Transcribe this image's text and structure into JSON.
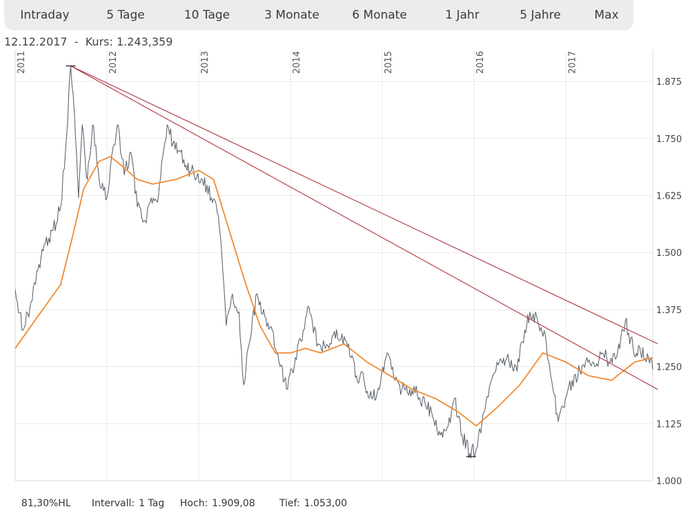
{
  "tabs": [
    {
      "label": "Intraday"
    },
    {
      "label": "5 Tage"
    },
    {
      "label": "10 Tage"
    },
    {
      "label": "3 Monate"
    },
    {
      "label": "6 Monate"
    },
    {
      "label": "1 Jahr"
    },
    {
      "label": "5 Jahre"
    },
    {
      "label": "Max"
    }
  ],
  "header": {
    "date": "12.12.2017",
    "separator": "-",
    "price_label": "Kurs:",
    "price_value": "1.243,359"
  },
  "footer": {
    "range_pct": "81,30%HL",
    "interval_label": "Intervall:",
    "interval_value": "1 Tag",
    "high_label": "Hoch:",
    "high_value": "1.909,08",
    "low_label": "Tief:",
    "low_value": "1.053,00"
  },
  "colors": {
    "price_line": "#5f6670",
    "moving_average": "#f08a32",
    "trendline": "#b5404a",
    "grid": "#e9e9e9",
    "tab_bar": "#ececec"
  },
  "chart_data": {
    "type": "line",
    "x_range": [
      "2011-01-01",
      "2017-12-12"
    ],
    "ylim": [
      1.0,
      1.925
    ],
    "y_ticks": [
      1.0,
      1.125,
      1.25,
      1.375,
      1.5,
      1.625,
      1.75,
      1.875
    ],
    "y_tick_labels": [
      "1.000",
      "1.125",
      "1.250",
      "1.375",
      "1.500",
      "1.625",
      "1.750",
      "1.875"
    ],
    "year_labels": [
      {
        "label": "2011",
        "date": "2011-01-01"
      },
      {
        "label": "2012",
        "date": "2012-01-01"
      },
      {
        "label": "2013",
        "date": "2013-01-01"
      },
      {
        "label": "2014",
        "date": "2014-01-01"
      },
      {
        "label": "2015",
        "date": "2015-01-01"
      },
      {
        "label": "2016",
        "date": "2016-01-01"
      },
      {
        "label": "2017",
        "date": "2017-01-01"
      }
    ],
    "grid": true,
    "series": [
      {
        "kind": "price",
        "points": [
          [
            "2011-01-01",
            1.42
          ],
          [
            "2011-02-01",
            1.33
          ],
          [
            "2011-03-01",
            1.38
          ],
          [
            "2011-04-01",
            1.46
          ],
          [
            "2011-05-01",
            1.52
          ],
          [
            "2011-06-01",
            1.55
          ],
          [
            "2011-07-01",
            1.6
          ],
          [
            "2011-07-25",
            1.76
          ],
          [
            "2011-08-10",
            1.909
          ],
          [
            "2011-08-25",
            1.8
          ],
          [
            "2011-09-10",
            1.62
          ],
          [
            "2011-09-25",
            1.78
          ],
          [
            "2011-10-15",
            1.66
          ],
          [
            "2011-11-05",
            1.78
          ],
          [
            "2011-12-01",
            1.66
          ],
          [
            "2012-01-01",
            1.62
          ],
          [
            "2012-01-25",
            1.73
          ],
          [
            "2012-02-15",
            1.78
          ],
          [
            "2012-03-10",
            1.67
          ],
          [
            "2012-04-05",
            1.72
          ],
          [
            "2012-05-01",
            1.6
          ],
          [
            "2012-06-01",
            1.57
          ],
          [
            "2012-06-25",
            1.62
          ],
          [
            "2012-07-20",
            1.61
          ],
          [
            "2012-08-10",
            1.71
          ],
          [
            "2012-08-28",
            1.78
          ],
          [
            "2012-09-20",
            1.74
          ],
          [
            "2012-10-20",
            1.72
          ],
          [
            "2012-11-15",
            1.68
          ],
          [
            "2012-12-10",
            1.68
          ],
          [
            "2013-01-15",
            1.66
          ],
          [
            "2013-02-20",
            1.62
          ],
          [
            "2013-03-20",
            1.58
          ],
          [
            "2013-04-05",
            1.47
          ],
          [
            "2013-04-20",
            1.34
          ],
          [
            "2013-05-10",
            1.4
          ],
          [
            "2013-06-10",
            1.37
          ],
          [
            "2013-06-28",
            1.21
          ],
          [
            "2013-07-20",
            1.3
          ],
          [
            "2013-08-20",
            1.41
          ],
          [
            "2013-09-20",
            1.36
          ],
          [
            "2013-10-20",
            1.33
          ],
          [
            "2013-11-20",
            1.25
          ],
          [
            "2013-12-20",
            1.2
          ],
          [
            "2014-01-20",
            1.27
          ],
          [
            "2014-02-20",
            1.33
          ],
          [
            "2014-03-15",
            1.38
          ],
          [
            "2014-04-20",
            1.3
          ],
          [
            "2014-05-20",
            1.29
          ],
          [
            "2014-06-20",
            1.32
          ],
          [
            "2014-07-20",
            1.31
          ],
          [
            "2014-08-20",
            1.3
          ],
          [
            "2014-09-20",
            1.23
          ],
          [
            "2014-10-20",
            1.22
          ],
          [
            "2014-11-20",
            1.18
          ],
          [
            "2014-12-20",
            1.2
          ],
          [
            "2015-01-20",
            1.28
          ],
          [
            "2015-02-20",
            1.22
          ],
          [
            "2015-03-20",
            1.2
          ],
          [
            "2015-04-20",
            1.2
          ],
          [
            "2015-05-20",
            1.19
          ],
          [
            "2015-06-20",
            1.17
          ],
          [
            "2015-07-20",
            1.14
          ],
          [
            "2015-08-20",
            1.1
          ],
          [
            "2015-09-20",
            1.12
          ],
          [
            "2015-10-15",
            1.18
          ],
          [
            "2015-11-15",
            1.1
          ],
          [
            "2015-12-15",
            1.06
          ],
          [
            "2016-01-10",
            1.07
          ],
          [
            "2016-02-10",
            1.15
          ],
          [
            "2016-03-10",
            1.22
          ],
          [
            "2016-04-10",
            1.26
          ],
          [
            "2016-05-10",
            1.27
          ],
          [
            "2016-06-20",
            1.24
          ],
          [
            "2016-07-20",
            1.33
          ],
          [
            "2016-08-10",
            1.37
          ],
          [
            "2016-09-10",
            1.35
          ],
          [
            "2016-10-10",
            1.32
          ],
          [
            "2016-11-10",
            1.2
          ],
          [
            "2016-12-01",
            1.13
          ],
          [
            "2016-12-25",
            1.16
          ],
          [
            "2017-01-25",
            1.22
          ],
          [
            "2017-02-25",
            1.24
          ],
          [
            "2017-03-25",
            1.27
          ],
          [
            "2017-04-25",
            1.25
          ],
          [
            "2017-05-25",
            1.28
          ],
          [
            "2017-06-25",
            1.26
          ],
          [
            "2017-07-25",
            1.28
          ],
          [
            "2017-08-25",
            1.35
          ],
          [
            "2017-09-25",
            1.29
          ],
          [
            "2017-10-25",
            1.28
          ],
          [
            "2017-11-25",
            1.27
          ],
          [
            "2017-12-12",
            1.243
          ]
        ]
      },
      {
        "kind": "moving-average",
        "points": [
          [
            "2011-01-01",
            1.29
          ],
          [
            "2011-04-01",
            1.36
          ],
          [
            "2011-07-01",
            1.43
          ],
          [
            "2011-08-15",
            1.53
          ],
          [
            "2011-10-01",
            1.64
          ],
          [
            "2011-12-01",
            1.7
          ],
          [
            "2012-01-15",
            1.71
          ],
          [
            "2012-03-01",
            1.69
          ],
          [
            "2012-05-01",
            1.66
          ],
          [
            "2012-07-01",
            1.65
          ],
          [
            "2012-10-01",
            1.66
          ],
          [
            "2013-01-01",
            1.68
          ],
          [
            "2013-03-01",
            1.66
          ],
          [
            "2013-05-01",
            1.55
          ],
          [
            "2013-07-01",
            1.44
          ],
          [
            "2013-09-01",
            1.34
          ],
          [
            "2013-11-01",
            1.28
          ],
          [
            "2014-01-01",
            1.28
          ],
          [
            "2014-03-01",
            1.29
          ],
          [
            "2014-05-01",
            1.28
          ],
          [
            "2014-08-01",
            1.3
          ],
          [
            "2014-11-01",
            1.26
          ],
          [
            "2015-02-01",
            1.23
          ],
          [
            "2015-05-01",
            1.2
          ],
          [
            "2015-08-01",
            1.18
          ],
          [
            "2015-11-01",
            1.15
          ],
          [
            "2016-01-10",
            1.12
          ],
          [
            "2016-04-01",
            1.16
          ],
          [
            "2016-07-01",
            1.21
          ],
          [
            "2016-10-01",
            1.28
          ],
          [
            "2017-01-01",
            1.26
          ],
          [
            "2017-04-01",
            1.23
          ],
          [
            "2017-07-01",
            1.22
          ],
          [
            "2017-10-01",
            1.26
          ],
          [
            "2017-12-12",
            1.27
          ]
        ]
      },
      {
        "kind": "trendline",
        "points": [
          [
            "2011-08-10",
            1.909
          ],
          [
            "2018-01-01",
            1.3
          ]
        ]
      },
      {
        "kind": "trendline",
        "points": [
          [
            "2011-08-10",
            1.909
          ],
          [
            "2018-01-01",
            1.2
          ]
        ]
      }
    ],
    "markers": [
      {
        "kind": "high",
        "date": "2011-08-10",
        "value": 1.909
      },
      {
        "kind": "low",
        "date": "2015-12-20",
        "value": 1.053
      }
    ]
  }
}
